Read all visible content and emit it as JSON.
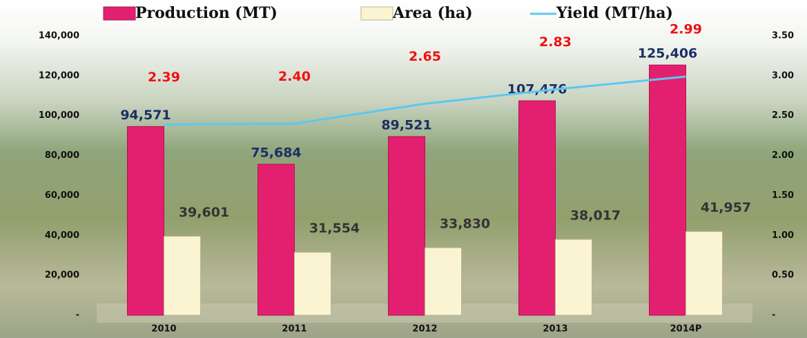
{
  "chart_data": {
    "type": "bar-line",
    "categories": [
      "2010",
      "2011",
      "2012",
      "2013",
      "2014P"
    ],
    "series": [
      {
        "name": "Production (MT)",
        "color": "#e3206f",
        "type": "bar",
        "values": [
          94571,
          75684,
          89521,
          107476,
          125406
        ],
        "value_labels": [
          "94,571",
          "75,684",
          "89,521",
          "107,476",
          "125,406"
        ],
        "label_color": "#1a2f66"
      },
      {
        "name": "Area (ha)",
        "color": "#fbf4d2",
        "type": "bar",
        "values": [
          39601,
          31554,
          33830,
          38017,
          41957
        ],
        "value_labels": [
          "39,601",
          "31,554",
          "33,830",
          "38,017",
          "41,957"
        ],
        "label_color": "#333333"
      },
      {
        "name": "Yield (MT/ha)",
        "color": "#5bc8f0",
        "type": "line",
        "axis": "y2",
        "values": [
          2.39,
          2.4,
          2.65,
          2.83,
          2.99
        ],
        "value_labels": [
          "2.39",
          "2.40",
          "2.65",
          "2.83",
          "2.99"
        ],
        "label_color": "#ee1111"
      }
    ],
    "ylim": [
      0,
      140000
    ],
    "yticks": [
      {
        "value": 0,
        "label": "-"
      },
      {
        "value": 20000,
        "label": "20,000"
      },
      {
        "value": 40000,
        "label": "40,000"
      },
      {
        "value": 60000,
        "label": "60,000"
      },
      {
        "value": 80000,
        "label": "80,000"
      },
      {
        "value": 100000,
        "label": "100,000"
      },
      {
        "value": 120000,
        "label": "120,000"
      },
      {
        "value": 140000,
        "label": "140,000"
      }
    ],
    "y2lim": [
      0,
      3.5
    ],
    "y2ticks": [
      {
        "value": 0,
        "label": "-"
      },
      {
        "value": 0.5,
        "label": "0.50"
      },
      {
        "value": 1,
        "label": "1.00"
      },
      {
        "value": 1.5,
        "label": "1.50"
      },
      {
        "value": 2,
        "label": "2.00"
      },
      {
        "value": 2.5,
        "label": "2.50"
      },
      {
        "value": 3,
        "label": "3.00"
      },
      {
        "value": 3.5,
        "label": "3.50"
      }
    ]
  }
}
